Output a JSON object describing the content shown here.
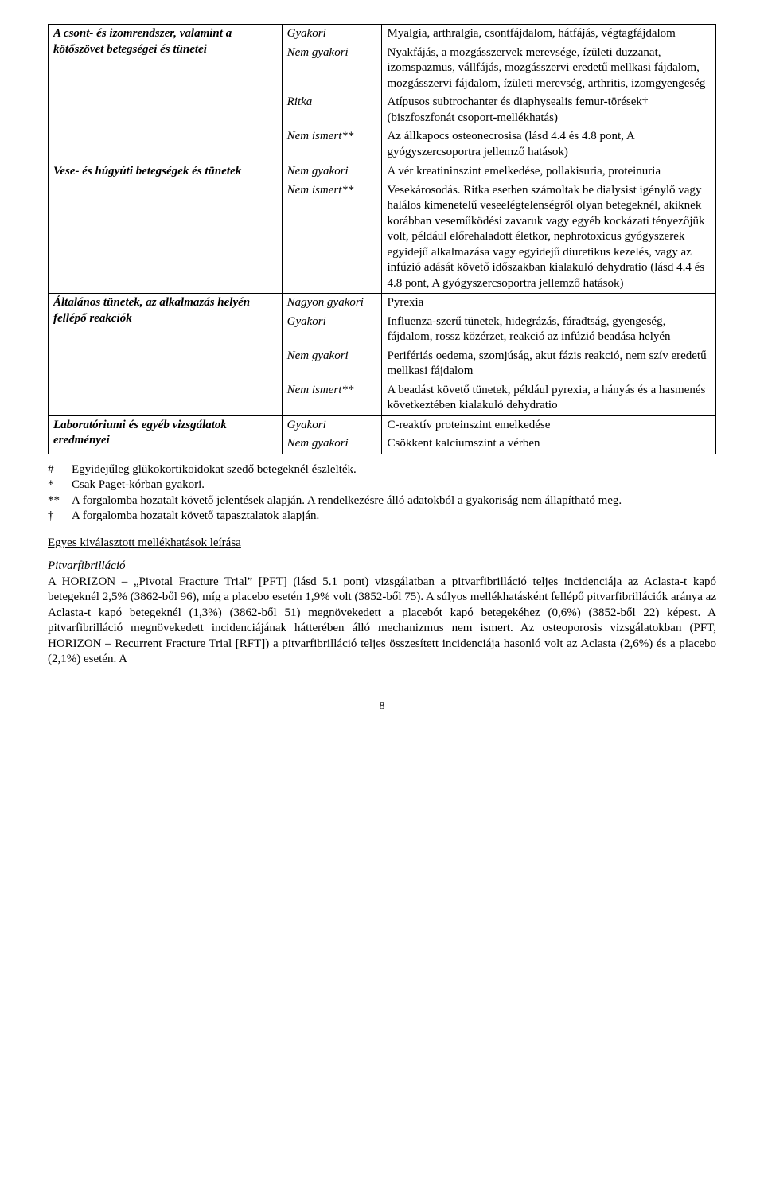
{
  "table": {
    "groups": [
      {
        "soc": "A csont- és izomrendszer, valamint a kötőszövet betegségei és tünetei",
        "rows": [
          {
            "freq": "Gyakori",
            "reaction": "Myalgia, arthralgia, csontfájdalom, hátfájás, végtagfájdalom"
          },
          {
            "freq": "Nem gyakori",
            "reaction": "Nyakfájás, a mozgásszervek merevsége, ízületi duzzanat, izomspazmus, vállfájás, mozgásszervi eredetű mellkasi fájdalom, mozgásszervi fájdalom, ízületi merevség, arthritis, izomgyengeség"
          },
          {
            "freq": "Ritka",
            "reaction": "Atípusos subtrochanter és diaphysealis femur-törések† (biszfoszfonát csoport-mellékhatás)"
          },
          {
            "freq": "Nem ismert**",
            "reaction": "Az állkapocs osteonecrosisa (lásd 4.4 és 4.8 pont, A gyógyszercsoportra jellemző hatások)"
          }
        ]
      },
      {
        "soc": "Vese- és húgyúti betegségek és tünetek",
        "rows": [
          {
            "freq": "Nem gyakori",
            "reaction": "A vér kreatininszint emelkedése, pollakisuria, proteinuria"
          },
          {
            "freq": "Nem ismert**",
            "reaction": "Vesekárosodás. Ritka esetben számoltak be dialysist igénylő vagy halálos kimenetelű veseelégtelenségről olyan betegeknél, akiknek korábban veseműködési zavaruk vagy egyéb kockázati tényezőjük volt, például előrehaladott életkor, nephrotoxicus gyógyszerek egyidejű alkalmazása vagy egyidejű diuretikus kezelés, vagy az infúzió adását követő időszakban kialakuló dehydratio (lásd 4.4 és 4.8 pont, A gyógyszercsoportra jellemző hatások)"
          }
        ]
      },
      {
        "soc": "Általános tünetek, az alkalmazás helyén fellépő reakciók",
        "rows": [
          {
            "freq": "Nagyon gyakori",
            "reaction": "Pyrexia"
          },
          {
            "freq": "Gyakori",
            "reaction": "Influenza-szerű tünetek, hidegrázás, fáradtság, gyengeség, fájdalom, rossz közérzet, reakció az infúzió beadása helyén"
          },
          {
            "freq": "Nem gyakori",
            "reaction": "Perifériás oedema, szomjúság, akut fázis reakció, nem szív eredetű mellkasi fájdalom"
          },
          {
            "freq": "Nem ismert**",
            "reaction": "A beadást követő tünetek, például pyrexia, a hányás és a hasmenés következtében kialakuló dehydratio"
          }
        ]
      },
      {
        "soc": "Laboratóriumi és egyéb vizsgálatok eredményei",
        "rows": [
          {
            "freq": "Gyakori",
            "reaction": "C-reaktív proteinszint emelkedése"
          },
          {
            "freq": "Nem gyakori",
            "reaction": "Csökkent kalciumszint a vérben"
          }
        ]
      }
    ]
  },
  "footnotes": [
    {
      "sym": "#",
      "txt": "Egyidejűleg glükokortikoidokat szedő betegeknél észlelték."
    },
    {
      "sym": "*",
      "txt": "Csak Paget-kórban gyakori."
    },
    {
      "sym": "**",
      "txt": "A forgalomba hozatalt követő jelentések alapján. A rendelkezésre álló adatokból a gyakoriság nem állapítható meg."
    },
    {
      "sym": "†",
      "txt": "A forgalomba hozatalt követő tapasztalatok alapján."
    }
  ],
  "selectedHeading": "Egyes kiválasztott mellékhatások leírása",
  "afHeading": "Pitvarfibrilláció",
  "afBody": "A HORIZON – „Pivotal Fracture Trial” [PFT] (lásd 5.1 pont) vizsgálatban a pitvarfibrilláció teljes incidenciája az Aclasta-t kapó betegeknél 2,5% (3862-ből 96), míg a placebo esetén 1,9% volt (3852-ből 75). A súlyos mellékhatásként fellépő pitvarfibrillációk aránya az Aclasta-t kapó betegeknél (1,3%) (3862-ből 51) megnövekedett a placebót kapó betegekéhez (0,6%) (3852-ből 22) képest. A pitvarfibrilláció megnövekedett incidenciájának hátterében álló mechanizmus nem ismert. Az osteoporosis vizsgálatokban (PFT, HORIZON – Recurrent Fracture Trial [RFT]) a pitvarfibrilláció teljes összesített incidenciája hasonló volt az Aclasta (2,6%) és a placebo (2,1%) esetén. A",
  "pageNumber": "8"
}
